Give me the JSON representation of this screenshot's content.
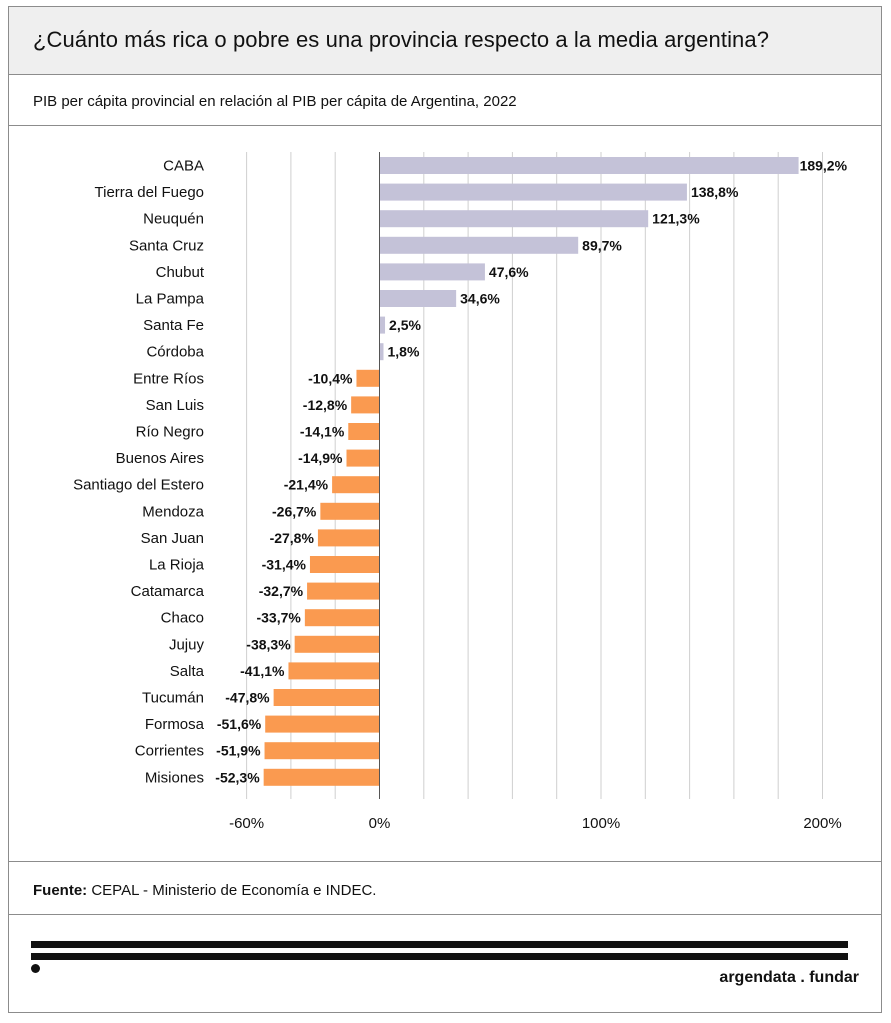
{
  "header": {
    "title": "¿Cuánto más rica o pobre es una provincia respecto a la media argentina?",
    "subtitle": "PIB per cápita provincial en relación al PIB per cápita de Argentina, 2022"
  },
  "footer": {
    "source_label": "Fuente:",
    "source_text": "CEPAL - Ministerio de Economía e INDEC.",
    "brand": "argendata . fundar"
  },
  "colors": {
    "positive": "#c4c2d8",
    "negative": "#fa9a50",
    "grid": "#cfcfcf",
    "axis": "#555555",
    "text": "#111111"
  },
  "chart_data": {
    "type": "bar",
    "orientation": "horizontal",
    "title": "¿Cuánto más rica o pobre es una provincia respecto a la media argentina?",
    "subtitle": "PIB per cápita provincial en relación al PIB per cápita de Argentina, 2022",
    "xlabel": "",
    "ylabel": "",
    "xlim": [
      -75,
      200
    ],
    "grid": true,
    "x_ticks": [
      -60,
      0,
      100,
      200
    ],
    "x_tick_labels": [
      "-60%",
      "0%",
      "100%",
      "200%"
    ],
    "categories": [
      "CABA",
      "Tierra del Fuego",
      "Neuquén",
      "Santa Cruz",
      "Chubut",
      "La Pampa",
      "Santa Fe",
      "Córdoba",
      "Entre Ríos",
      "San Luis",
      "Río Negro",
      "Buenos Aires",
      "Santiago del Estero",
      "Mendoza",
      "San Juan",
      "La Rioja",
      "Catamarca",
      "Chaco",
      "Jujuy",
      "Salta",
      "Tucumán",
      "Formosa",
      "Corrientes",
      "Misiones"
    ],
    "values": [
      189.2,
      138.8,
      121.3,
      89.7,
      47.6,
      34.6,
      2.5,
      1.8,
      -10.4,
      -12.8,
      -14.1,
      -14.9,
      -21.4,
      -26.7,
      -27.8,
      -31.4,
      -32.7,
      -33.7,
      -38.3,
      -41.1,
      -47.8,
      -51.6,
      -51.9,
      -52.3
    ],
    "labels": [
      "189,2%",
      "138,8%",
      "121,3%",
      "89,7%",
      "47,6%",
      "34,6%",
      "2,5%",
      "1,8%",
      "-10,4%",
      "-12,8%",
      "-14,1%",
      "-14,9%",
      "-21,4%",
      "-26,7%",
      "-27,8%",
      "-31,4%",
      "-32,7%",
      "-33,7%",
      "-38,3%",
      "-41,1%",
      "-47,8%",
      "-51,6%",
      "-51,9%",
      "-52,3%"
    ]
  }
}
